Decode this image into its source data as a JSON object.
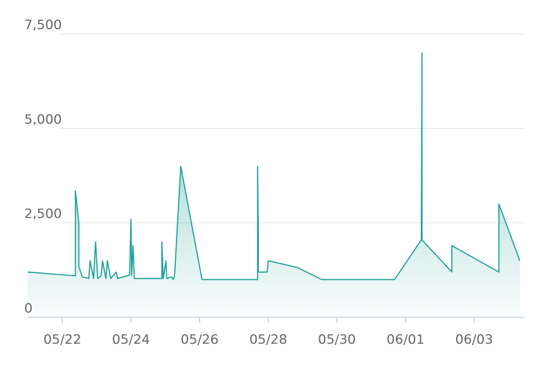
{
  "chart_data": {
    "type": "area",
    "x": [
      20.99,
      22.38,
      22.38,
      22.48,
      22.48,
      22.58,
      22.77,
      22.81,
      22.91,
      22.97,
      23.03,
      23.13,
      23.17,
      23.27,
      23.31,
      23.41,
      23.57,
      23.61,
      23.96,
      24.0,
      24.02,
      24.06,
      24.1,
      24.9,
      24.9,
      24.94,
      25.02,
      25.04,
      25.19,
      25.23,
      25.27,
      25.45,
      26.07,
      27.69,
      27.69,
      27.71,
      27.71,
      27.97,
      28.0,
      28.85,
      29.56,
      31.68,
      32.46,
      32.48,
      32.48,
      33.35,
      33.35,
      34.72,
      34.72,
      35.33
    ],
    "series": [
      {
        "color": "#1a9e96",
        "values": [
          1200,
          1100,
          3350,
          2500,
          1350,
          1070,
          1030,
          1500,
          1030,
          2000,
          1030,
          1100,
          1500,
          1030,
          1500,
          1030,
          1200,
          1030,
          1120,
          2600,
          1100,
          1900,
          1030,
          1030,
          2000,
          1030,
          1500,
          1030,
          1070,
          1000,
          1100,
          4000,
          1000,
          1000,
          4000,
          2200,
          1200,
          1200,
          1500,
          1320,
          1000,
          1000,
          2050,
          7000,
          2050,
          1200,
          1900,
          1200,
          3000,
          1500
        ]
      }
    ],
    "xlim": [
      20.99,
      35.45
    ],
    "xticks": [
      {
        "value": 22,
        "label": "05/22"
      },
      {
        "value": 24,
        "label": "05/24"
      },
      {
        "value": 26,
        "label": "05/26"
      },
      {
        "value": 28,
        "label": "05/28"
      },
      {
        "value": 30,
        "label": "05/30"
      },
      {
        "value": 32,
        "label": "06/01"
      },
      {
        "value": 34,
        "label": "06/03"
      }
    ],
    "ylim": [
      0,
      7500
    ],
    "yticks": [
      0,
      {
        "value": 2500,
        "label": "2,500"
      },
      {
        "value": 5000,
        "label": "5,000"
      },
      {
        "value": 7500,
        "label": "7,500"
      }
    ],
    "grid": true
  }
}
